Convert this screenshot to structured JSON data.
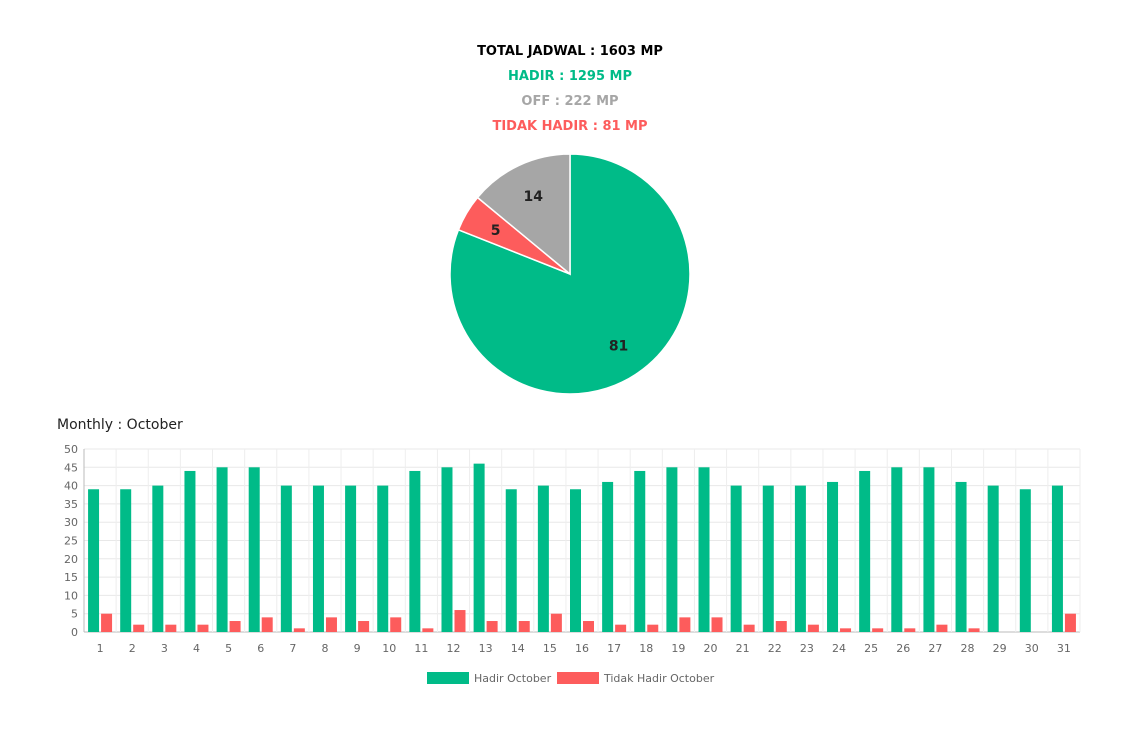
{
  "summary": {
    "total": "TOTAL JADWAL : 1603 MP",
    "hadir": "HADIR : 1295 MP",
    "off": "OFF : 222 MP",
    "tidak_hadir": "TIDAK HADIR : 81 MP"
  },
  "colors": {
    "hadir": "#00bb88",
    "off": "#a6a6a6",
    "tidak_hadir": "#fd5c5c",
    "total": "#000000"
  },
  "bar_title": "Monthly : October",
  "chart_data": [
    {
      "type": "pie",
      "slices": [
        {
          "label": "81",
          "value": 81,
          "color": "#00bb88"
        },
        {
          "label": "5",
          "value": 5,
          "color": "#fd5c5c"
        },
        {
          "label": "14",
          "value": 14,
          "color": "#a6a6a6"
        }
      ],
      "title": "",
      "legend": "none"
    },
    {
      "type": "bar",
      "title": "Monthly : October",
      "categories": [
        "1",
        "2",
        "3",
        "4",
        "5",
        "6",
        "7",
        "8",
        "9",
        "10",
        "11",
        "12",
        "13",
        "14",
        "15",
        "16",
        "17",
        "18",
        "19",
        "20",
        "21",
        "22",
        "23",
        "24",
        "25",
        "26",
        "27",
        "28",
        "29",
        "30",
        "31"
      ],
      "series": [
        {
          "name": "Hadir October",
          "color": "#00bb88",
          "values": [
            39,
            39,
            40,
            44,
            45,
            45,
            40,
            40,
            40,
            40,
            44,
            45,
            46,
            39,
            40,
            39,
            41,
            44,
            45,
            45,
            40,
            40,
            40,
            41,
            44,
            45,
            45,
            41,
            40,
            39,
            40
          ]
        },
        {
          "name": "Tidak Hadir October",
          "color": "#fd5c5c",
          "values": [
            5,
            2,
            2,
            2,
            3,
            4,
            1,
            4,
            3,
            4,
            1,
            6,
            3,
            3,
            5,
            3,
            2,
            2,
            4,
            4,
            2,
            3,
            2,
            1,
            1,
            1,
            2,
            1,
            0,
            0,
            5
          ]
        }
      ],
      "ylim": [
        0,
        50
      ],
      "yticks": [
        0,
        5,
        10,
        15,
        20,
        25,
        30,
        35,
        40,
        45,
        50
      ],
      "grid": true,
      "legend": "bottom-center",
      "xlabel": "",
      "ylabel": ""
    }
  ]
}
